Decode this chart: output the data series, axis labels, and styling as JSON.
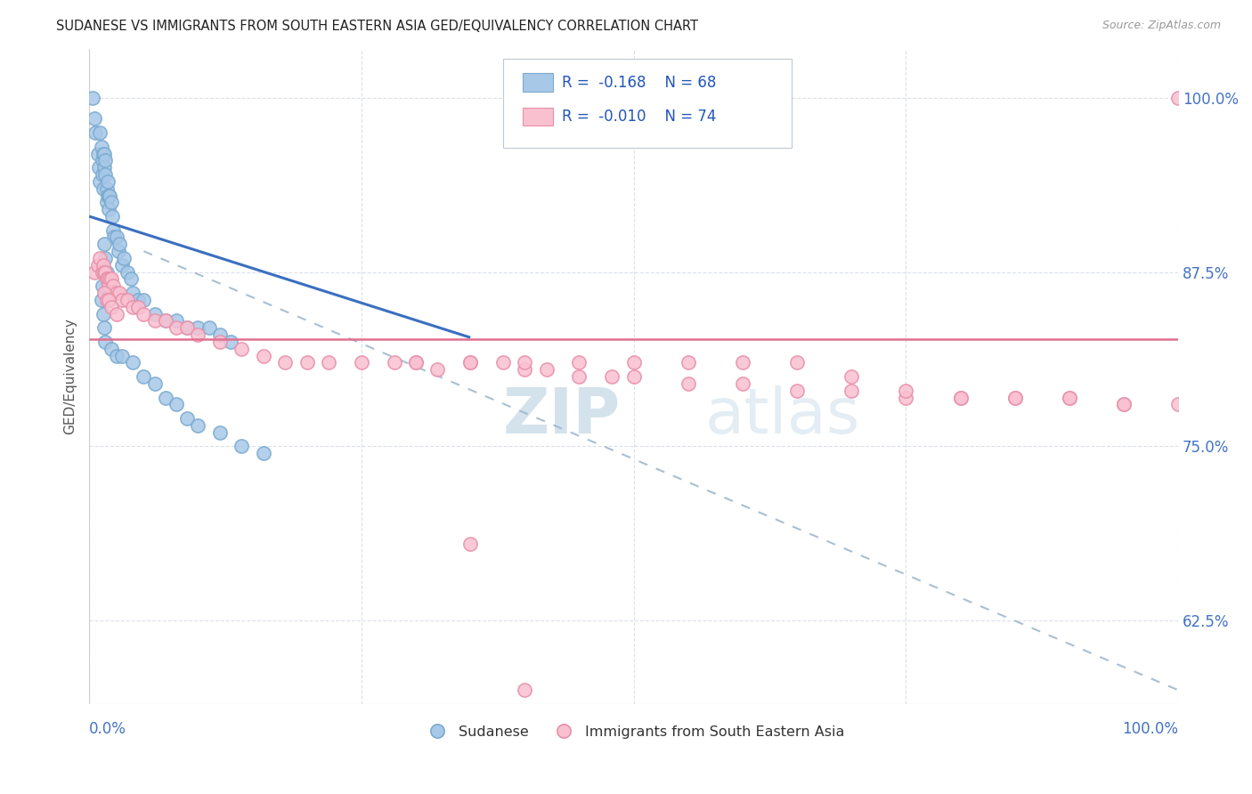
{
  "title": "SUDANESE VS IMMIGRANTS FROM SOUTH EASTERN ASIA GED/EQUIVALENCY CORRELATION CHART",
  "source": "Source: ZipAtlas.com",
  "ylabel": "GED/Equivalency",
  "xlim": [
    0.0,
    1.0
  ],
  "ylim": [
    0.565,
    1.035
  ],
  "yticks": [
    0.625,
    0.75,
    0.875,
    1.0
  ],
  "ytick_labels": [
    "62.5%",
    "75.0%",
    "87.5%",
    "100.0%"
  ],
  "legend_r_blue": "-0.168",
  "legend_n_blue": "68",
  "legend_r_pink": "-0.010",
  "legend_n_pink": "74",
  "legend_label_blue": "Sudanese",
  "legend_label_pink": "Immigrants from South Eastern Asia",
  "blue_color": "#a8c8e8",
  "blue_edge_color": "#7aaacf",
  "pink_color": "#f9c0d0",
  "pink_edge_color": "#e890aa",
  "trendline_blue_color": "#3a6fc0",
  "trendline_pink_color": "#e07090",
  "dash_color": "#a0b8d0",
  "watermark_zip_color": "#c0d4e8",
  "watermark_atlas_color": "#b8cce0",
  "grid_color": "#d8dde8",
  "blue_scatter_x": [
    0.003,
    0.005,
    0.006,
    0.008,
    0.009,
    0.01,
    0.01,
    0.011,
    0.012,
    0.012,
    0.013,
    0.013,
    0.014,
    0.014,
    0.015,
    0.015,
    0.016,
    0.016,
    0.017,
    0.017,
    0.018,
    0.018,
    0.019,
    0.02,
    0.021,
    0.022,
    0.023,
    0.025,
    0.027,
    0.028,
    0.03,
    0.032,
    0.035,
    0.038,
    0.04,
    0.045,
    0.05,
    0.06,
    0.07,
    0.08,
    0.09,
    0.1,
    0.11,
    0.12,
    0.13,
    0.014,
    0.015,
    0.016,
    0.017,
    0.013,
    0.012,
    0.011,
    0.013,
    0.014,
    0.015,
    0.02,
    0.025,
    0.03,
    0.04,
    0.05,
    0.06,
    0.07,
    0.08,
    0.09,
    0.1,
    0.12,
    0.14,
    0.16
  ],
  "blue_scatter_y": [
    1.0,
    0.985,
    0.975,
    0.96,
    0.95,
    0.975,
    0.94,
    0.965,
    0.955,
    0.945,
    0.96,
    0.935,
    0.96,
    0.95,
    0.955,
    0.945,
    0.935,
    0.925,
    0.94,
    0.93,
    0.93,
    0.92,
    0.93,
    0.925,
    0.915,
    0.905,
    0.9,
    0.9,
    0.89,
    0.895,
    0.88,
    0.885,
    0.875,
    0.87,
    0.86,
    0.855,
    0.855,
    0.845,
    0.84,
    0.84,
    0.835,
    0.835,
    0.835,
    0.83,
    0.825,
    0.895,
    0.885,
    0.875,
    0.865,
    0.875,
    0.865,
    0.855,
    0.845,
    0.835,
    0.825,
    0.82,
    0.815,
    0.815,
    0.81,
    0.8,
    0.795,
    0.785,
    0.78,
    0.77,
    0.765,
    0.76,
    0.75,
    0.745
  ],
  "pink_scatter_x": [
    0.005,
    0.008,
    0.01,
    0.012,
    0.013,
    0.014,
    0.015,
    0.016,
    0.017,
    0.018,
    0.019,
    0.02,
    0.022,
    0.025,
    0.028,
    0.03,
    0.035,
    0.04,
    0.045,
    0.05,
    0.06,
    0.07,
    0.08,
    0.09,
    0.1,
    0.12,
    0.14,
    0.16,
    0.18,
    0.2,
    0.22,
    0.25,
    0.28,
    0.3,
    0.32,
    0.35,
    0.38,
    0.4,
    0.42,
    0.45,
    0.48,
    0.5,
    0.55,
    0.6,
    0.65,
    0.7,
    0.75,
    0.8,
    0.85,
    0.9,
    0.95,
    1.0,
    0.014,
    0.016,
    0.018,
    0.02,
    0.025,
    0.3,
    0.35,
    0.4,
    0.45,
    0.5,
    0.55,
    0.6,
    0.65,
    0.7,
    0.75,
    0.8,
    0.85,
    0.9,
    0.95,
    1.0,
    0.35,
    0.4
  ],
  "pink_scatter_y": [
    0.875,
    0.88,
    0.885,
    0.875,
    0.88,
    0.875,
    0.875,
    0.87,
    0.87,
    0.865,
    0.87,
    0.87,
    0.865,
    0.86,
    0.86,
    0.855,
    0.855,
    0.85,
    0.85,
    0.845,
    0.84,
    0.84,
    0.835,
    0.835,
    0.83,
    0.825,
    0.82,
    0.815,
    0.81,
    0.81,
    0.81,
    0.81,
    0.81,
    0.81,
    0.805,
    0.81,
    0.81,
    0.805,
    0.805,
    0.8,
    0.8,
    0.8,
    0.795,
    0.795,
    0.79,
    0.79,
    0.785,
    0.785,
    0.785,
    0.785,
    0.78,
    0.78,
    0.86,
    0.855,
    0.855,
    0.85,
    0.845,
    0.81,
    0.81,
    0.81,
    0.81,
    0.81,
    0.81,
    0.81,
    0.81,
    0.8,
    0.79,
    0.785,
    0.785,
    0.785,
    0.78,
    1.0,
    0.68,
    0.575
  ],
  "blue_trend_x": [
    0.0,
    0.35
  ],
  "blue_trend_y": [
    0.915,
    0.828
  ],
  "pink_trend_x": [
    0.0,
    1.0
  ],
  "pink_trend_y": [
    0.827,
    0.827
  ],
  "dash_trend_x": [
    0.05,
    1.0
  ],
  "dash_trend_y": [
    0.89,
    0.575
  ]
}
